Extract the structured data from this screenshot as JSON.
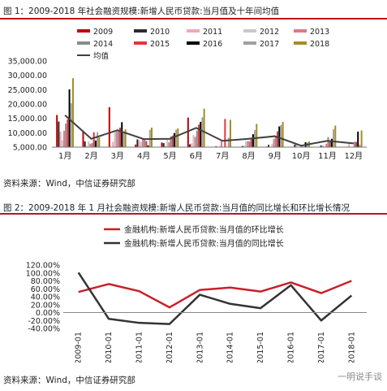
{
  "figure1": {
    "title": "图 1：2009-2018 年社会融资规模:新增人民币贷款:当月值及十年间均值",
    "source": "资料来源：Wind，中信证券研究部",
    "chart_data": {
      "type": "bar",
      "categories": [
        "1月",
        "2月",
        "3月",
        "4月",
        "5月",
        "6月",
        "7月",
        "8月",
        "9月",
        "10月",
        "11月",
        "12月"
      ],
      "ylim": [
        5000,
        35000
      ],
      "yticks": [
        "5,000.00",
        "10,000.00",
        "15,000.00",
        "20,000.00",
        "25,000.00",
        "30,000.00",
        "35,000.00"
      ],
      "ytick_values": [
        5000,
        10000,
        15000,
        20000,
        25000,
        30000,
        35000
      ],
      "legend_placement": "top",
      "series": [
        {
          "name": "2009",
          "color": "#c00000",
          "values": [
            16200,
            10700,
            18900,
            5900,
            6600,
            15300,
            3600,
            4100,
            5200,
            2500,
            2900,
            3800
          ]
        },
        {
          "name": "2010",
          "color": "#2b2b2b",
          "values": [
            13900,
            7000,
            5100,
            7700,
            6400,
            6000,
            5300,
            5400,
            5800,
            5900,
            5600,
            4800
          ]
        },
        {
          "name": "2011",
          "color": "#f2a8b4",
          "values": [
            10400,
            5400,
            6800,
            7400,
            5500,
            6300,
            4900,
            5500,
            4700,
            5900,
            5600,
            6400
          ]
        },
        {
          "name": "2012",
          "color": "#c8c8c8",
          "values": [
            7400,
            7100,
            10100,
            6800,
            7900,
            9200,
            5400,
            7000,
            6200,
            5100,
            5200,
            4500
          ]
        },
        {
          "name": "2013",
          "color": "#d97a8a",
          "values": [
            10700,
            6200,
            10600,
            7900,
            6700,
            8600,
            7000,
            7100,
            7900,
            5100,
            6200,
            4800
          ]
        },
        {
          "name": "2014",
          "color": "#8a8a8a",
          "values": [
            13200,
            6400,
            10500,
            7800,
            8700,
            10800,
            3900,
            7000,
            8600,
            5500,
            8500,
            6900
          ]
        },
        {
          "name": "2015",
          "color": "#e8323c",
          "values": [
            14700,
            10200,
            11800,
            7100,
            9000,
            12800,
            14800,
            8100,
            10500,
            5100,
            7100,
            6800
          ]
        },
        {
          "name": "2016",
          "color": "#000000",
          "values": [
            25100,
            7300,
            13700,
            5600,
            9900,
            13800,
            4600,
            9500,
            12200,
            6700,
            7900,
            10400
          ]
        },
        {
          "name": "2017",
          "color": "#a0a0a0",
          "values": [
            20300,
            10200,
            10200,
            11000,
            11100,
            15400,
            8300,
            10900,
            12700,
            6600,
            11200,
            5800
          ]
        },
        {
          "name": "2018",
          "color": "#a58d22",
          "values": [
            29000,
            8400,
            11200,
            11800,
            11500,
            18400,
            14500,
            13100,
            13800,
            6970,
            12500,
            10800
          ]
        },
        {
          "name": "均值",
          "color": "#404040",
          "type": "line",
          "values": [
            16100,
            7900,
            10900,
            7800,
            7900,
            11700,
            7200,
            7900,
            8800,
            5500,
            7200,
            6300
          ]
        }
      ]
    }
  },
  "figure2": {
    "title": "图 2：2009-2018 年 1 月社会融资规模:新增人民币贷款:当月值的同比增长和环比增长情况",
    "source": "资料来源：Wind，中信证券研究部",
    "chart_data": {
      "type": "line",
      "categories": [
        "2009-01",
        "2010-01",
        "2011-01",
        "2012-01",
        "2013-01",
        "2014-01",
        "2015-01",
        "2016-01",
        "2017-01",
        "2018-01"
      ],
      "ylim": [
        -40,
        120
      ],
      "yticks": [
        "-40.00%",
        "-20.00%",
        "0.00%",
        "20.00%",
        "40.00%",
        "60.00%",
        "80.00%",
        "100.00%",
        "120.00%"
      ],
      "ytick_values": [
        -40,
        -20,
        0,
        20,
        40,
        60,
        80,
        100,
        120
      ],
      "legend_placement": "top",
      "series": [
        {
          "name": "金融机构:新增人民币贷款:当月值的环比增长",
          "color": "#c8202a",
          "values": [
            52,
            72,
            54,
            13,
            57,
            63,
            53,
            76,
            49,
            80
          ]
        },
        {
          "name": "金融机构:新增人民币贷款:当月值的同比增长",
          "color": "#333333",
          "values": [
            101,
            -16,
            -26,
            -29,
            45,
            22,
            11,
            69,
            -20,
            43
          ]
        }
      ]
    }
  },
  "watermark": "一明说手谈"
}
